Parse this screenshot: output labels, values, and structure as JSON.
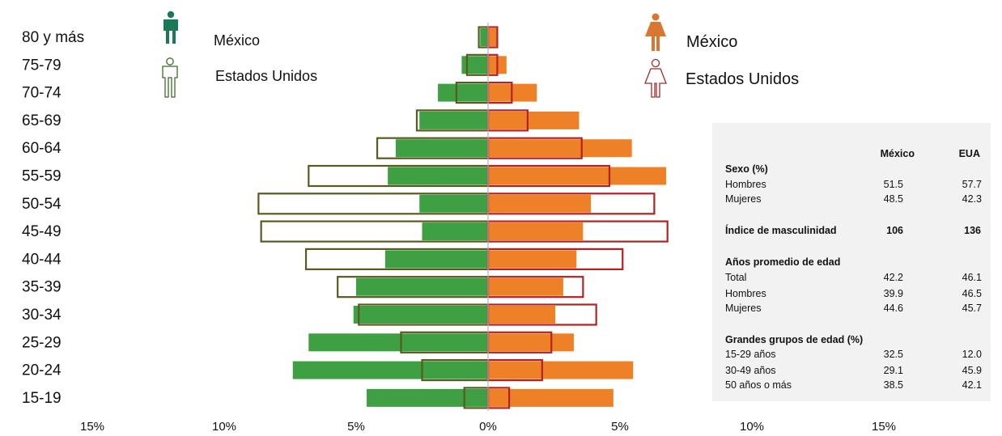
{
  "chart_data": {
    "type": "bar",
    "orientation": "horizontal-population-pyramid",
    "categories": [
      "80 y más",
      "75-79",
      "70-74",
      "65-69",
      "60-64",
      "55-59",
      "50-54",
      "45-49",
      "40-44",
      "35-39",
      "30-34",
      "25-29",
      "20-24",
      "15-19"
    ],
    "series": [
      {
        "name": "México",
        "values": [
          -0.3,
          -1.0,
          -1.9,
          -2.6,
          -3.5,
          -3.8,
          -2.6,
          -2.5,
          -3.9,
          -5.0,
          -5.1,
          -6.8,
          -7.4,
          -4.6
        ],
        "color": "#3ea043",
        "style": "filled"
      },
      {
        "name": "Estados Unidos",
        "values": [
          -0.35,
          -0.8,
          -1.2,
          -2.7,
          -4.2,
          -6.8,
          -8.7,
          -8.6,
          -6.9,
          -5.7,
          -4.9,
          -3.3,
          -2.5,
          -0.9
        ],
        "color": "#5a5a1e",
        "style": "outline"
      },
      {
        "name": "México",
        "values": [
          0.35,
          0.7,
          1.85,
          3.45,
          5.45,
          6.75,
          3.9,
          3.6,
          3.35,
          2.85,
          2.55,
          3.25,
          5.5,
          4.75
        ],
        "color": "#ee8127",
        "style": "filled"
      },
      {
        "name": "Estados Unidos",
        "values": [
          0.35,
          0.35,
          0.9,
          1.5,
          3.55,
          4.6,
          6.3,
          6.8,
          5.1,
          3.6,
          4.1,
          2.4,
          2.05,
          0.8
        ],
        "color": "#b22222",
        "style": "outline"
      }
    ],
    "x_ticks": [
      "15%",
      "10%",
      "5%",
      "0%",
      "5%",
      "10%",
      "15%"
    ],
    "xlim": [
      -15,
      15
    ],
    "title": "",
    "xlabel": "",
    "ylabel": ""
  },
  "legend": {
    "male_mexico": "México",
    "male_usa": "Estados Unidos",
    "female_mexico": "México",
    "female_usa": "Estados Unidos",
    "icons": [
      "male-filled-icon",
      "male-outline-icon",
      "female-filled-icon",
      "female-outline-icon"
    ],
    "colors": {
      "male_mexico": "#1b7a55",
      "male_usa": "#3e6b2a",
      "female_mexico": "#d9762f",
      "female_usa": "#9c2d2d"
    }
  },
  "stats": {
    "col_mexico": "México",
    "col_eua": "EUA",
    "sexo": {
      "title": "Sexo (%)",
      "rows": [
        {
          "label": "Hombres",
          "mexico": "51.5",
          "eua": "57.7"
        },
        {
          "label": "Mujeres",
          "mexico": "48.5",
          "eua": "42.3"
        }
      ]
    },
    "indice": {
      "label": "Índice de masculinidad",
      "mexico": "106",
      "eua": "136"
    },
    "edad": {
      "title": "Años promedio de edad",
      "rows": [
        {
          "label": "Total",
          "mexico": "42.2",
          "eua": "46.1"
        },
        {
          "label": "Hombres",
          "mexico": "39.9",
          "eua": "46.5"
        },
        {
          "label": "Mujeres",
          "mexico": "44.6",
          "eua": "45.7"
        }
      ]
    },
    "grupos": {
      "title": "Grandes grupos de edad (%)",
      "rows": [
        {
          "label": "15-29 años",
          "mexico": "32.5",
          "eua": "12.0"
        },
        {
          "label": "30-49 años",
          "mexico": "29.1",
          "eua": "45.9"
        },
        {
          "label": "50 años o más",
          "mexico": "38.5",
          "eua": "42.1"
        }
      ]
    }
  }
}
